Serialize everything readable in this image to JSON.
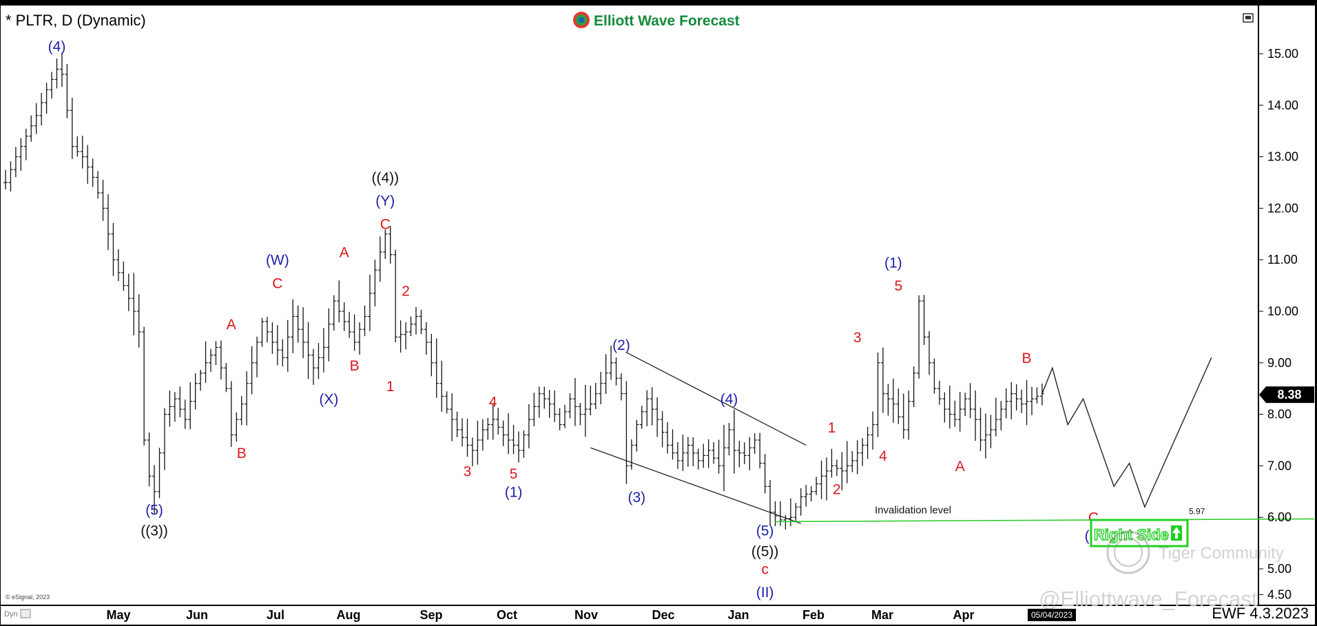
{
  "colors": {
    "red": "#d9161c",
    "blue": "#1a1fa8",
    "black": "#111111",
    "green_line": "#22cc22",
    "right_side": "#1fd01f"
  },
  "header": {
    "title": "* PLTR, D (Dynamic)",
    "brand": "Elliott Wave Forecast"
  },
  "footer": {
    "copyright": "© eSignal, 2023",
    "version_stamp": "EWF 4.3.2023",
    "date_box": "05/04/2023",
    "dyn_tag": "Dyn",
    "watermark_handle": "@Elliottwave_Forecast",
    "watermark_community": "Tiger Community"
  },
  "badges": {
    "right_side": "Right Side",
    "right_side_icon": "up-arrow-icon"
  },
  "chart_data": {
    "type": "ohlc-bar",
    "symbol": "PLTR",
    "interval": "D (Dynamic)",
    "ylim": [
      4.3,
      15.9
    ],
    "yticks": [
      "15.00",
      "14.00",
      "13.00",
      "12.00",
      "11.00",
      "10.00",
      "9.00",
      "8.00",
      "7.00",
      "6.00",
      "5.00",
      "4.50"
    ],
    "last_price": "8.38",
    "months": [
      "May",
      "Jun",
      "Jul",
      "Aug",
      "Sep",
      "Oct",
      "Nov",
      "Dec",
      "Jan",
      "Feb",
      "Mar",
      "Apr"
    ],
    "price_path": [
      [
        0,
        12.5
      ],
      [
        2,
        13.0
      ],
      [
        4,
        13.4
      ],
      [
        6,
        13.8
      ],
      [
        8,
        14.3
      ],
      [
        10,
        14.7
      ],
      [
        11,
        14.6
      ],
      [
        13,
        13.2
      ],
      [
        15,
        13.0
      ],
      [
        17,
        12.6
      ],
      [
        19,
        12.0
      ],
      [
        21,
        11.0
      ],
      [
        23,
        10.5
      ],
      [
        25,
        10.0
      ],
      [
        26,
        9.6
      ],
      [
        27,
        7.5
      ],
      [
        28,
        6.8
      ],
      [
        29,
        6.5
      ],
      [
        31,
        8.0
      ],
      [
        33,
        8.3
      ],
      [
        35,
        7.9
      ],
      [
        37,
        8.6
      ],
      [
        39,
        9.0
      ],
      [
        41,
        9.3
      ],
      [
        43,
        8.5
      ],
      [
        44,
        7.6
      ],
      [
        46,
        8.2
      ],
      [
        48,
        9.0
      ],
      [
        50,
        9.8
      ],
      [
        52,
        9.4
      ],
      [
        54,
        9.1
      ],
      [
        56,
        9.9
      ],
      [
        58,
        9.4
      ],
      [
        60,
        8.9
      ],
      [
        62,
        9.3
      ],
      [
        64,
        10.2
      ],
      [
        66,
        9.8
      ],
      [
        68,
        9.4
      ],
      [
        70,
        9.9
      ],
      [
        72,
        10.8
      ],
      [
        74,
        11.5
      ],
      [
        75,
        11.1
      ],
      [
        76,
        9.5
      ],
      [
        78,
        9.6
      ],
      [
        80,
        9.9
      ],
      [
        82,
        9.4
      ],
      [
        84,
        8.6
      ],
      [
        86,
        8.1
      ],
      [
        88,
        7.7
      ],
      [
        90,
        7.4
      ],
      [
        91,
        7.3
      ],
      [
        93,
        7.7
      ],
      [
        95,
        7.9
      ],
      [
        97,
        7.6
      ],
      [
        99,
        7.4
      ],
      [
        100,
        7.3
      ],
      [
        102,
        7.9
      ],
      [
        104,
        8.4
      ],
      [
        106,
        8.2
      ],
      [
        108,
        7.8
      ],
      [
        110,
        8.3
      ],
      [
        112,
        8.0
      ],
      [
        114,
        8.2
      ],
      [
        116,
        8.6
      ],
      [
        118,
        9.0
      ],
      [
        120,
        8.4
      ],
      [
        121,
        7.0
      ],
      [
        123,
        7.8
      ],
      [
        125,
        8.3
      ],
      [
        127,
        7.9
      ],
      [
        129,
        7.4
      ],
      [
        131,
        7.1
      ],
      [
        133,
        7.4
      ],
      [
        135,
        7.1
      ],
      [
        137,
        7.3
      ],
      [
        139,
        7.0
      ],
      [
        141,
        7.7
      ],
      [
        142,
        7.3
      ],
      [
        144,
        7.2
      ],
      [
        146,
        7.5
      ],
      [
        148,
        6.6
      ],
      [
        149,
        6.1
      ],
      [
        151,
        5.95
      ],
      [
        153,
        6.0
      ],
      [
        155,
        6.4
      ],
      [
        157,
        6.5
      ],
      [
        159,
        6.8
      ],
      [
        161,
        7.0
      ],
      [
        163,
        6.9
      ],
      [
        165,
        7.1
      ],
      [
        167,
        7.4
      ],
      [
        169,
        7.8
      ],
      [
        170,
        9.0
      ],
      [
        171,
        8.4
      ],
      [
        173,
        8.2
      ],
      [
        175,
        7.7
      ],
      [
        177,
        8.8
      ],
      [
        178,
        10.2
      ],
      [
        179,
        9.5
      ],
      [
        181,
        8.5
      ],
      [
        183,
        8.1
      ],
      [
        185,
        7.9
      ],
      [
        187,
        8.3
      ],
      [
        189,
        7.9
      ],
      [
        190,
        7.5
      ],
      [
        192,
        7.7
      ],
      [
        194,
        8.1
      ],
      [
        196,
        8.4
      ],
      [
        198,
        8.2
      ],
      [
        200,
        8.3
      ],
      [
        202,
        8.4
      ]
    ],
    "projection": [
      [
        202,
        8.4
      ],
      [
        204,
        8.9
      ],
      [
        207,
        7.8
      ],
      [
        210,
        8.3
      ],
      [
        216,
        6.6
      ],
      [
        219,
        7.05
      ],
      [
        222,
        6.2
      ],
      [
        235,
        9.1
      ]
    ],
    "channel_lines": [
      {
        "name": "upper",
        "from": [
          121,
          9.2
        ],
        "to": [
          156,
          7.4
        ]
      },
      {
        "name": "lower",
        "from": [
          114,
          7.35
        ],
        "to": [
          155,
          5.88
        ]
      }
    ],
    "invalidation": {
      "label": "Invalidation level",
      "value": "5.97",
      "from_x": 150,
      "to_x": 255
    },
    "wave_labels": [
      {
        "text": "(4)",
        "x": 10,
        "y": 15.05,
        "color": "blue"
      },
      {
        "text": "(5)",
        "x": 29,
        "y": 6.05,
        "color": "blue"
      },
      {
        "text": "((3))",
        "x": 29,
        "y": 5.65,
        "color": "black"
      },
      {
        "text": "A",
        "x": 44,
        "y": 9.65,
        "color": "red"
      },
      {
        "text": "B",
        "x": 46,
        "y": 7.15,
        "color": "red"
      },
      {
        "text": "(W)",
        "x": 53,
        "y": 10.9,
        "color": "blue"
      },
      {
        "text": "C",
        "x": 53,
        "y": 10.45,
        "color": "red"
      },
      {
        "text": "A",
        "x": 66,
        "y": 11.05,
        "color": "red"
      },
      {
        "text": "B",
        "x": 68,
        "y": 8.85,
        "color": "red"
      },
      {
        "text": "(X)",
        "x": 63,
        "y": 8.2,
        "color": "blue"
      },
      {
        "text": "((4))",
        "x": 74,
        "y": 12.5,
        "color": "black"
      },
      {
        "text": "(Y)",
        "x": 74,
        "y": 12.05,
        "color": "blue"
      },
      {
        "text": "C",
        "x": 74,
        "y": 11.6,
        "color": "red"
      },
      {
        "text": "2",
        "x": 78,
        "y": 10.3,
        "color": "red"
      },
      {
        "text": "1",
        "x": 75,
        "y": 8.45,
        "color": "red"
      },
      {
        "text": "3",
        "x": 90,
        "y": 6.8,
        "color": "red"
      },
      {
        "text": "4",
        "x": 95,
        "y": 8.15,
        "color": "red"
      },
      {
        "text": "5",
        "x": 99,
        "y": 6.75,
        "color": "red"
      },
      {
        "text": "(1)",
        "x": 99,
        "y": 6.4,
        "color": "blue"
      },
      {
        "text": "(2)",
        "x": 120,
        "y": 9.25,
        "color": "blue"
      },
      {
        "text": "(3)",
        "x": 123,
        "y": 6.3,
        "color": "blue"
      },
      {
        "text": "(4)",
        "x": 141,
        "y": 8.2,
        "color": "blue"
      },
      {
        "text": "(5)",
        "x": 148,
        "y": 5.65,
        "color": "blue"
      },
      {
        "text": "((5))",
        "x": 148,
        "y": 5.25,
        "color": "black"
      },
      {
        "text": "c",
        "x": 148,
        "y": 4.9,
        "color": "red"
      },
      {
        "text": "(II)",
        "x": 148,
        "y": 4.45,
        "color": "blue"
      },
      {
        "text": "1",
        "x": 161,
        "y": 7.65,
        "color": "red"
      },
      {
        "text": "2",
        "x": 162,
        "y": 6.45,
        "color": "red"
      },
      {
        "text": "3",
        "x": 166,
        "y": 9.4,
        "color": "red"
      },
      {
        "text": "4",
        "x": 171,
        "y": 7.1,
        "color": "red"
      },
      {
        "text": "(1)",
        "x": 173,
        "y": 10.85,
        "color": "blue"
      },
      {
        "text": "5",
        "x": 174,
        "y": 10.4,
        "color": "red"
      },
      {
        "text": "A",
        "x": 186,
        "y": 6.9,
        "color": "red"
      },
      {
        "text": "B",
        "x": 199,
        "y": 9.0,
        "color": "red"
      },
      {
        "text": "C",
        "x": 212,
        "y": 5.9,
        "color": "red"
      },
      {
        "text": "(2)",
        "x": 212,
        "y": 5.55,
        "color": "blue"
      }
    ]
  }
}
